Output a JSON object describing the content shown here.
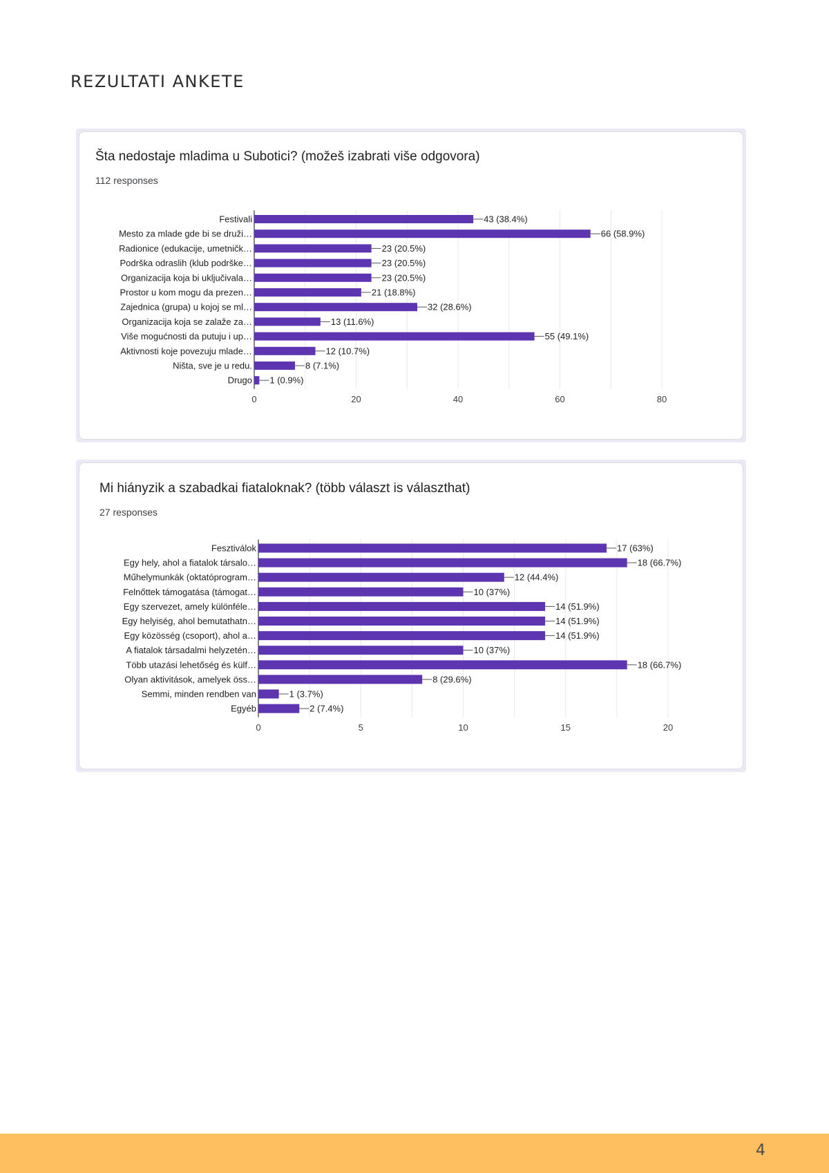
{
  "page": {
    "heading": "REZULTATI ANKETE",
    "page_number": "4",
    "footer_color": "#fdbf5f"
  },
  "bar_color": "#5e35b1",
  "chart_data": [
    {
      "type": "bar",
      "orientation": "horizontal",
      "title": "Šta nedostaje mladima u Subotici? (možeš izabrati više odgovora)",
      "responses_label": "112 responses",
      "categories": [
        "Festivali",
        "Mesto za mlade gde bi se druži…",
        "Radionice (edukacije, umetničk…",
        "Podrška odraslih (klub podrške…",
        "Organizacija koja bi uključivala…",
        "Prostor u kom mogu da prezen…",
        "Zajednica (grupa) u kojoj se ml…",
        "Organizacija koja se zalaže za…",
        "Više mogućnosti da putuju i up…",
        "Aktivnosti koje povezuju mlade…",
        "Ništa, sve je u redu.",
        "Drugo"
      ],
      "values": [
        43,
        66,
        23,
        23,
        23,
        21,
        32,
        13,
        55,
        12,
        8,
        1
      ],
      "value_labels": [
        "43 (38.4%)",
        "66 (58.9%)",
        "23 (20.5%)",
        "23 (20.5%)",
        "23 (20.5%)",
        "21 (18.8%)",
        "32 (28.6%)",
        "13 (11.6%)",
        "55 (49.1%)",
        "12 (10.7%)",
        "8 (7.1%)",
        "1 (0.9%)"
      ],
      "xlim": [
        0,
        80
      ],
      "xticks": [
        "0",
        "20",
        "40",
        "60",
        "80"
      ],
      "grid": true
    },
    {
      "type": "bar",
      "orientation": "horizontal",
      "title": "Mi hiányzik a szabadkai fiataloknak? (több választ is választhat)",
      "responses_label": "27 responses",
      "categories": [
        "Fesztiválok",
        "Egy hely, ahol a fiatalok társalo…",
        "Műhelymunkák (oktatóprogram…",
        "Felnőttek támogatása (támogat…",
        "Egy szervezet, amely különféle…",
        "Egy helyiség, ahol bemutathatn…",
        "Egy közösség (csoport), ahol a…",
        "A fiatalok társadalmi helyzetén…",
        "Több utazási lehetőség és külf…",
        "Olyan aktivitások, amelyek öss…",
        "Semmi, minden rendben van",
        "Egyéb"
      ],
      "values": [
        17,
        18,
        12,
        10,
        14,
        14,
        14,
        10,
        18,
        8,
        1,
        2
      ],
      "value_labels": [
        "17 (63%)",
        "18 (66.7%)",
        "12 (44.4%)",
        "10 (37%)",
        "14 (51.9%)",
        "14 (51.9%)",
        "14 (51.9%)",
        "10 (37%)",
        "18 (66.7%)",
        "8 (29.6%)",
        "1 (3.7%)",
        "2 (7.4%)"
      ],
      "xlim": [
        0,
        20
      ],
      "xticks": [
        "0",
        "5",
        "10",
        "15",
        "20"
      ],
      "grid": true
    }
  ]
}
